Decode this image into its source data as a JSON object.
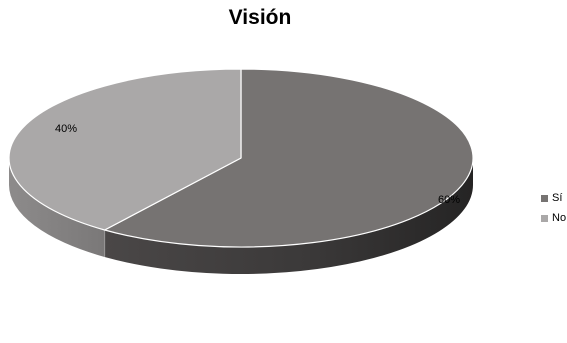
{
  "chart_data": {
    "type": "pie",
    "title": "Visión",
    "categories": [
      "Sí",
      "No"
    ],
    "values": [
      60,
      40
    ],
    "data_labels": [
      "60%",
      "40%"
    ],
    "colors": {
      "Sí": "#767372",
      "No": "#aaa8a8"
    },
    "side_colors": {
      "Sí": "#3f3d3d",
      "No": "#858383"
    },
    "style": "3d",
    "legend_position": "right",
    "grid": false
  }
}
